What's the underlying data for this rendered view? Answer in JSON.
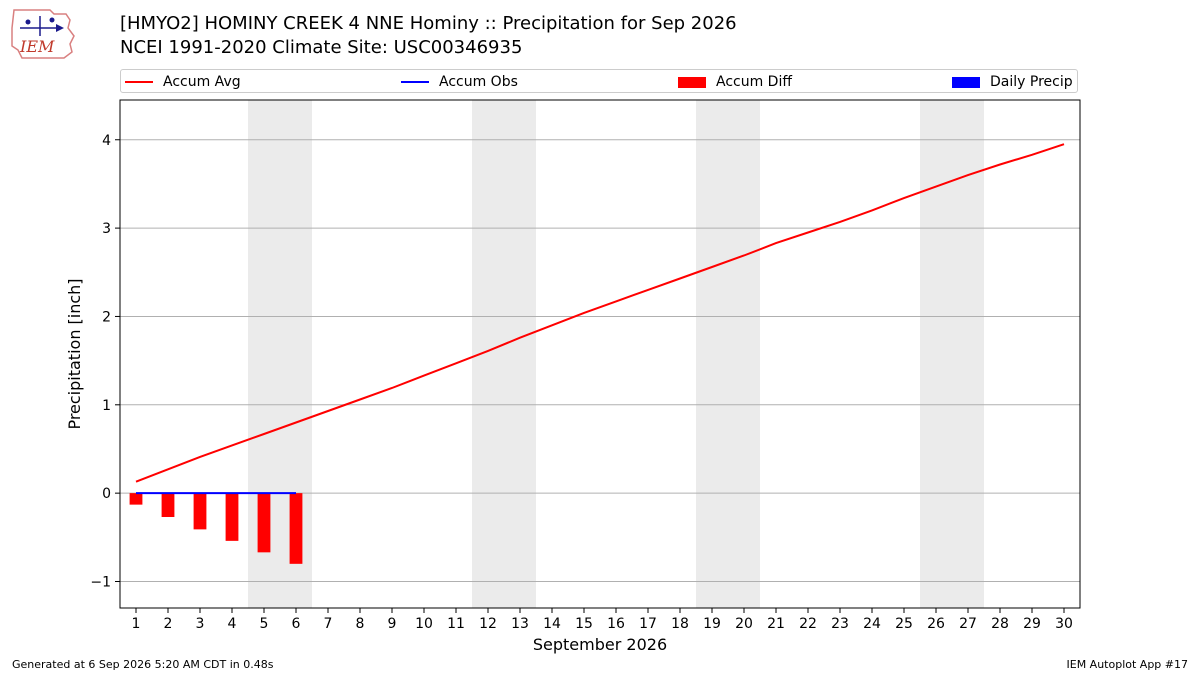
{
  "header": {
    "logo_text": "IEM",
    "title_line1": "[HMYO2] HOMINY CREEK 4 NNE Hominy :: Precipitation for Sep 2026",
    "title_line2": "NCEI 1991-2020 Climate Site: USC00346935"
  },
  "legend": {
    "items": [
      {
        "label": "Accum Avg",
        "kind": "line",
        "color": "#ff0000"
      },
      {
        "label": "Accum Obs",
        "kind": "line",
        "color": "#0000ff"
      },
      {
        "label": "Accum Diff",
        "kind": "rect",
        "color": "#ff0000"
      },
      {
        "label": "Daily Precip",
        "kind": "rect",
        "color": "#0000ff"
      }
    ]
  },
  "footer": {
    "left": "Generated at 6 Sep 2026 5:20 AM CDT in 0.48s",
    "right": "IEM Autoplot App #17"
  },
  "colors": {
    "avg": "#ff0000",
    "obs": "#0000ff",
    "diff": "#ff0000",
    "weekend": "#ebebeb",
    "grid": "#b0b0b0"
  },
  "chart_data": {
    "type": "line",
    "xlabel": "September 2026",
    "ylabel": "Precipitation [inch]",
    "xlim": [
      0.5,
      30.5
    ],
    "ylim": [
      -1.3,
      4.45
    ],
    "yticks": [
      -1,
      0,
      1,
      2,
      3,
      4
    ],
    "ytick_labels": [
      "−1",
      "0",
      "1",
      "2",
      "3",
      "4"
    ],
    "categories": [
      1,
      2,
      3,
      4,
      5,
      6,
      7,
      8,
      9,
      10,
      11,
      12,
      13,
      14,
      15,
      16,
      17,
      18,
      19,
      20,
      21,
      22,
      23,
      24,
      25,
      26,
      27,
      28,
      29,
      30
    ],
    "weekend_days": [
      5,
      6,
      12,
      13,
      19,
      20,
      26,
      27
    ],
    "series": [
      {
        "name": "Accum Avg",
        "type": "line",
        "x": [
          1,
          2,
          3,
          4,
          5,
          6,
          7,
          8,
          9,
          10,
          11,
          12,
          13,
          14,
          15,
          16,
          17,
          18,
          19,
          20,
          21,
          22,
          23,
          24,
          25,
          26,
          27,
          28,
          29,
          30
        ],
        "values": [
          0.13,
          0.27,
          0.41,
          0.54,
          0.67,
          0.8,
          0.93,
          1.06,
          1.19,
          1.33,
          1.47,
          1.61,
          1.76,
          1.9,
          2.04,
          2.17,
          2.3,
          2.43,
          2.56,
          2.69,
          2.83,
          2.95,
          3.07,
          3.2,
          3.34,
          3.47,
          3.6,
          3.72,
          3.83,
          3.95
        ]
      },
      {
        "name": "Accum Obs",
        "type": "line",
        "x": [
          1,
          2,
          3,
          4,
          5,
          6
        ],
        "values": [
          0,
          0,
          0,
          0,
          0,
          0
        ]
      },
      {
        "name": "Accum Diff",
        "type": "bar",
        "x": [
          1,
          2,
          3,
          4,
          5,
          6
        ],
        "values": [
          -0.13,
          -0.27,
          -0.41,
          -0.54,
          -0.67,
          -0.8
        ]
      },
      {
        "name": "Daily Precip",
        "type": "bar",
        "x": [
          1,
          2,
          3,
          4,
          5,
          6
        ],
        "values": [
          0,
          0,
          0,
          0,
          0,
          0
        ]
      }
    ]
  }
}
